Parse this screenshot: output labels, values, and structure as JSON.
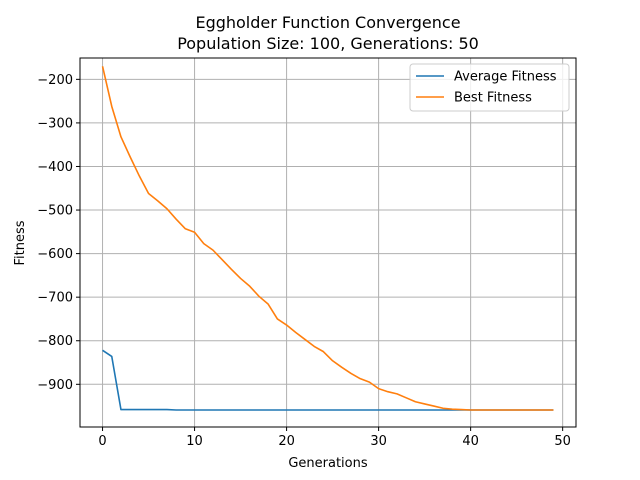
{
  "chart_data": {
    "type": "line",
    "title_lines": [
      "Eggholder Function Convergence",
      "Population Size: 100, Generations: 50"
    ],
    "xlabel": "Generations",
    "ylabel": "Fitness",
    "xlim": [
      -2.45,
      51.45
    ],
    "ylim": [
      -998,
      -151
    ],
    "xticks": [
      0,
      10,
      20,
      30,
      40,
      50
    ],
    "yticks": [
      -200,
      -300,
      -400,
      -500,
      -600,
      -700,
      -800,
      -900
    ],
    "grid": true,
    "legend_position": "top-right",
    "x": [
      0,
      1,
      2,
      3,
      4,
      5,
      6,
      7,
      8,
      9,
      10,
      11,
      12,
      13,
      14,
      15,
      16,
      17,
      18,
      19,
      20,
      21,
      22,
      23,
      24,
      25,
      26,
      27,
      28,
      29,
      30,
      31,
      32,
      33,
      34,
      35,
      36,
      37,
      38,
      39,
      40,
      41,
      42,
      43,
      44,
      45,
      46,
      47,
      48,
      49
    ],
    "series": [
      {
        "name": "Average Fitness",
        "color": "#1f77b4",
        "values": [
          -822,
          -836,
          -958,
          -958,
          -958,
          -958,
          -958,
          -958,
          -959,
          -959,
          -959,
          -959,
          -959,
          -959,
          -959,
          -959,
          -959,
          -959,
          -959,
          -959,
          -959,
          -959,
          -959,
          -959,
          -959,
          -959,
          -959,
          -959,
          -959,
          -959,
          -959,
          -959,
          -959,
          -959,
          -959,
          -959,
          -959,
          -959,
          -959,
          -959,
          -959,
          -959,
          -959,
          -959,
          -959,
          -959,
          -959,
          -959,
          -959,
          -959
        ]
      },
      {
        "name": "Best Fitness",
        "color": "#ff7f0e",
        "values": [
          -170,
          -262,
          -332,
          -378,
          -422,
          -462,
          -479,
          -497,
          -521,
          -543,
          -551,
          -577,
          -592,
          -614,
          -636,
          -657,
          -675,
          -698,
          -716,
          -750,
          -764,
          -781,
          -797,
          -813,
          -825,
          -846,
          -861,
          -875,
          -887,
          -895,
          -910,
          -917,
          -922,
          -931,
          -940,
          -945,
          -950,
          -955,
          -957,
          -958,
          -959,
          -959,
          -959,
          -959,
          -959,
          -959,
          -959,
          -959,
          -959,
          -959
        ]
      }
    ]
  }
}
